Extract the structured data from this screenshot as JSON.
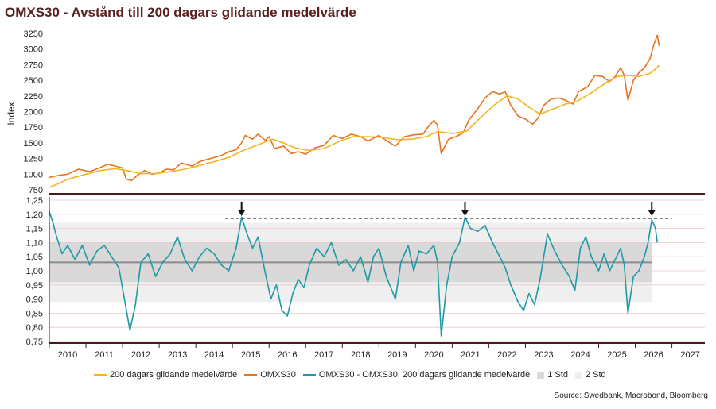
{
  "title": "OMXS30 - Avstånd till 200 dagars glidande medelvärde",
  "source": "Source: Swedbank, Macrobond, Bloomberg",
  "colors": {
    "omxs30": "#e8731f",
    "ma200": "#f2b51f",
    "distance": "#1e9aa7",
    "std1": "#d9d9d9",
    "std2": "#efefef",
    "axis": "#4a1a1a",
    "mean_line": "#8c8c8c",
    "grid": "#e8c9c9"
  },
  "legend": [
    {
      "label": "200 dagars glidande medelvärde",
      "kind": "line",
      "color": "#f2b51f"
    },
    {
      "label": "OMXS30",
      "kind": "line",
      "color": "#e8731f"
    },
    {
      "label": "OMXS30 - OMXS30, 200 dagars glidande medelvärde",
      "kind": "line",
      "color": "#1e9aa7"
    },
    {
      "label": "1 Std",
      "kind": "box",
      "color": "#d9d9d9"
    },
    {
      "label": "2 Std",
      "kind": "box",
      "color": "#efefef"
    }
  ],
  "chart_data": [
    {
      "type": "line",
      "panel": "top",
      "ylabel": "Index",
      "yticks": [
        "750",
        "1000",
        "1250",
        "1500",
        "1750",
        "2000",
        "2250",
        "2500",
        "2750",
        "3000",
        "3250"
      ],
      "ylim": [
        700,
        3300
      ],
      "xlim": [
        2009.5,
        2027.4
      ],
      "series": [
        {
          "name": "OMXS30",
          "points": [
            [
              2009.5,
              950
            ],
            [
              2009.75,
              980
            ],
            [
              2010.0,
              1000
            ],
            [
              2010.3,
              1080
            ],
            [
              2010.6,
              1040
            ],
            [
              2010.9,
              1110
            ],
            [
              2011.1,
              1160
            ],
            [
              2011.3,
              1130
            ],
            [
              2011.5,
              1100
            ],
            [
              2011.6,
              920
            ],
            [
              2011.75,
              900
            ],
            [
              2011.9,
              980
            ],
            [
              2012.1,
              1060
            ],
            [
              2012.3,
              1000
            ],
            [
              2012.5,
              1020
            ],
            [
              2012.7,
              1080
            ],
            [
              2012.9,
              1070
            ],
            [
              2013.1,
              1180
            ],
            [
              2013.4,
              1130
            ],
            [
              2013.6,
              1200
            ],
            [
              2013.9,
              1250
            ],
            [
              2014.2,
              1300
            ],
            [
              2014.4,
              1360
            ],
            [
              2014.6,
              1390
            ],
            [
              2014.75,
              1500
            ],
            [
              2014.85,
              1620
            ],
            [
              2015.05,
              1560
            ],
            [
              2015.2,
              1640
            ],
            [
              2015.4,
              1540
            ],
            [
              2015.5,
              1600
            ],
            [
              2015.65,
              1410
            ],
            [
              2015.9,
              1450
            ],
            [
              2016.1,
              1330
            ],
            [
              2016.3,
              1360
            ],
            [
              2016.5,
              1320
            ],
            [
              2016.75,
              1420
            ],
            [
              2017.0,
              1460
            ],
            [
              2017.25,
              1620
            ],
            [
              2017.5,
              1570
            ],
            [
              2017.75,
              1640
            ],
            [
              2018.0,
              1600
            ],
            [
              2018.2,
              1530
            ],
            [
              2018.5,
              1620
            ],
            [
              2018.75,
              1520
            ],
            [
              2018.95,
              1450
            ],
            [
              2019.2,
              1600
            ],
            [
              2019.45,
              1630
            ],
            [
              2019.7,
              1640
            ],
            [
              2019.85,
              1760
            ],
            [
              2020.0,
              1860
            ],
            [
              2020.1,
              1780
            ],
            [
              2020.2,
              1330
            ],
            [
              2020.4,
              1560
            ],
            [
              2020.6,
              1600
            ],
            [
              2020.8,
              1660
            ],
            [
              2020.95,
              1860
            ],
            [
              2021.2,
              2050
            ],
            [
              2021.4,
              2220
            ],
            [
              2021.6,
              2320
            ],
            [
              2021.8,
              2280
            ],
            [
              2021.95,
              2320
            ],
            [
              2022.1,
              2100
            ],
            [
              2022.3,
              1930
            ],
            [
              2022.5,
              1880
            ],
            [
              2022.7,
              1800
            ],
            [
              2022.85,
              1900
            ],
            [
              2023.0,
              2100
            ],
            [
              2023.2,
              2200
            ],
            [
              2023.4,
              2220
            ],
            [
              2023.6,
              2180
            ],
            [
              2023.8,
              2120
            ],
            [
              2023.95,
              2320
            ],
            [
              2024.2,
              2400
            ],
            [
              2024.4,
              2580
            ],
            [
              2024.6,
              2560
            ],
            [
              2024.8,
              2480
            ],
            [
              2024.95,
              2560
            ],
            [
              2025.1,
              2700
            ],
            [
              2025.2,
              2580
            ],
            [
              2025.3,
              2180
            ],
            [
              2025.45,
              2500
            ],
            [
              2025.6,
              2620
            ],
            [
              2025.75,
              2700
            ],
            [
              2025.9,
              2840
            ],
            [
              2026.0,
              3060
            ],
            [
              2026.1,
              3220
            ],
            [
              2026.15,
              3050
            ]
          ]
        },
        {
          "name": "200 dagars glidande medelvärde",
          "points": [
            [
              2009.5,
              790
            ],
            [
              2009.75,
              850
            ],
            [
              2010.0,
              920
            ],
            [
              2010.5,
              1000
            ],
            [
              2010.9,
              1060
            ],
            [
              2011.3,
              1090
            ],
            [
              2011.7,
              1050
            ],
            [
              2012.0,
              1010
            ],
            [
              2012.4,
              1010
            ],
            [
              2012.8,
              1040
            ],
            [
              2013.2,
              1080
            ],
            [
              2013.6,
              1140
            ],
            [
              2014.0,
              1200
            ],
            [
              2014.4,
              1270
            ],
            [
              2014.8,
              1380
            ],
            [
              2015.2,
              1470
            ],
            [
              2015.6,
              1560
            ],
            [
              2015.9,
              1500
            ],
            [
              2016.2,
              1420
            ],
            [
              2016.6,
              1380
            ],
            [
              2017.0,
              1410
            ],
            [
              2017.4,
              1520
            ],
            [
              2017.8,
              1600
            ],
            [
              2018.2,
              1600
            ],
            [
              2018.6,
              1590
            ],
            [
              2019.0,
              1550
            ],
            [
              2019.4,
              1560
            ],
            [
              2019.8,
              1600
            ],
            [
              2020.1,
              1680
            ],
            [
              2020.5,
              1650
            ],
            [
              2020.9,
              1690
            ],
            [
              2021.3,
              1920
            ],
            [
              2021.7,
              2130
            ],
            [
              2022.0,
              2250
            ],
            [
              2022.3,
              2200
            ],
            [
              2022.6,
              2070
            ],
            [
              2022.9,
              1960
            ],
            [
              2023.2,
              2030
            ],
            [
              2023.6,
              2120
            ],
            [
              2023.9,
              2160
            ],
            [
              2024.3,
              2300
            ],
            [
              2024.7,
              2460
            ],
            [
              2025.0,
              2560
            ],
            [
              2025.3,
              2580
            ],
            [
              2025.6,
              2560
            ],
            [
              2025.9,
              2610
            ],
            [
              2026.05,
              2680
            ],
            [
              2026.15,
              2740
            ]
          ]
        }
      ]
    },
    {
      "type": "line",
      "panel": "bottom",
      "yticks": [
        "0,75",
        "0,80",
        "0,85",
        "0,90",
        "0,95",
        "1,00",
        "1,05",
        "1,10",
        "1,15",
        "1,20",
        "1,25"
      ],
      "ylim": [
        0.75,
        1.25
      ],
      "xlim": [
        2009.5,
        2027.4
      ],
      "xticks": [
        "2010",
        "2011",
        "2012",
        "2013",
        "2014",
        "2015",
        "2016",
        "2017",
        "2018",
        "2019",
        "2020",
        "2021",
        "2022",
        "2023",
        "2024",
        "2025",
        "2026",
        "2027"
      ],
      "mean": 1.03,
      "std1": [
        0.96,
        1.1
      ],
      "std2": [
        0.89,
        1.17
      ],
      "std_band_end": 2025.95,
      "reference_line": {
        "value": 1.185,
        "x_start": 2014.3,
        "x_end": 2026.5
      },
      "arrows_at": [
        2014.75,
        2020.85,
        2025.95
      ],
      "series": [
        {
          "name": "OMXS30 - OMXS30, 200 dagars glidande medelvärde",
          "points": [
            [
              2009.5,
              1.21
            ],
            [
              2009.6,
              1.17
            ],
            [
              2009.7,
              1.12
            ],
            [
              2009.85,
              1.06
            ],
            [
              2010.0,
              1.09
            ],
            [
              2010.2,
              1.04
            ],
            [
              2010.4,
              1.09
            ],
            [
              2010.6,
              1.02
            ],
            [
              2010.8,
              1.07
            ],
            [
              2011.0,
              1.09
            ],
            [
              2011.2,
              1.05
            ],
            [
              2011.4,
              1.01
            ],
            [
              2011.55,
              0.9
            ],
            [
              2011.7,
              0.79
            ],
            [
              2011.85,
              0.88
            ],
            [
              2012.0,
              1.03
            ],
            [
              2012.2,
              1.06
            ],
            [
              2012.4,
              0.98
            ],
            [
              2012.6,
              1.03
            ],
            [
              2012.8,
              1.06
            ],
            [
              2013.0,
              1.12
            ],
            [
              2013.2,
              1.04
            ],
            [
              2013.4,
              1.0
            ],
            [
              2013.6,
              1.05
            ],
            [
              2013.8,
              1.08
            ],
            [
              2014.0,
              1.06
            ],
            [
              2014.2,
              1.02
            ],
            [
              2014.4,
              1.0
            ],
            [
              2014.6,
              1.08
            ],
            [
              2014.75,
              1.19
            ],
            [
              2014.9,
              1.13
            ],
            [
              2015.05,
              1.08
            ],
            [
              2015.2,
              1.12
            ],
            [
              2015.4,
              0.99
            ],
            [
              2015.55,
              0.9
            ],
            [
              2015.7,
              0.95
            ],
            [
              2015.85,
              0.86
            ],
            [
              2016.0,
              0.84
            ],
            [
              2016.15,
              0.92
            ],
            [
              2016.3,
              0.97
            ],
            [
              2016.45,
              0.94
            ],
            [
              2016.6,
              1.02
            ],
            [
              2016.8,
              1.08
            ],
            [
              2017.0,
              1.05
            ],
            [
              2017.2,
              1.1
            ],
            [
              2017.4,
              1.02
            ],
            [
              2017.6,
              1.04
            ],
            [
              2017.8,
              1.0
            ],
            [
              2018.0,
              1.05
            ],
            [
              2018.2,
              0.96
            ],
            [
              2018.35,
              1.05
            ],
            [
              2018.5,
              1.08
            ],
            [
              2018.7,
              0.98
            ],
            [
              2018.95,
              0.9
            ],
            [
              2019.1,
              1.03
            ],
            [
              2019.3,
              1.09
            ],
            [
              2019.45,
              1.0
            ],
            [
              2019.6,
              1.07
            ],
            [
              2019.8,
              1.06
            ],
            [
              2020.0,
              1.09
            ],
            [
              2020.1,
              1.03
            ],
            [
              2020.2,
              0.77
            ],
            [
              2020.35,
              0.95
            ],
            [
              2020.5,
              1.05
            ],
            [
              2020.7,
              1.1
            ],
            [
              2020.85,
              1.19
            ],
            [
              2021.0,
              1.15
            ],
            [
              2021.2,
              1.14
            ],
            [
              2021.4,
              1.16
            ],
            [
              2021.6,
              1.1
            ],
            [
              2021.8,
              1.05
            ],
            [
              2021.95,
              1.01
            ],
            [
              2022.1,
              0.95
            ],
            [
              2022.3,
              0.89
            ],
            [
              2022.45,
              0.86
            ],
            [
              2022.6,
              0.92
            ],
            [
              2022.75,
              0.88
            ],
            [
              2022.9,
              0.97
            ],
            [
              2023.1,
              1.13
            ],
            [
              2023.3,
              1.07
            ],
            [
              2023.5,
              1.02
            ],
            [
              2023.7,
              0.98
            ],
            [
              2023.85,
              0.93
            ],
            [
              2024.0,
              1.08
            ],
            [
              2024.15,
              1.12
            ],
            [
              2024.3,
              1.05
            ],
            [
              2024.5,
              1.0
            ],
            [
              2024.65,
              1.06
            ],
            [
              2024.8,
              1.0
            ],
            [
              2024.95,
              1.04
            ],
            [
              2025.1,
              1.08
            ],
            [
              2025.2,
              1.02
            ],
            [
              2025.3,
              0.85
            ],
            [
              2025.45,
              0.98
            ],
            [
              2025.6,
              1.0
            ],
            [
              2025.75,
              1.05
            ],
            [
              2025.85,
              1.1
            ],
            [
              2025.95,
              1.18
            ],
            [
              2026.05,
              1.15
            ],
            [
              2026.1,
              1.1
            ]
          ]
        }
      ]
    }
  ]
}
